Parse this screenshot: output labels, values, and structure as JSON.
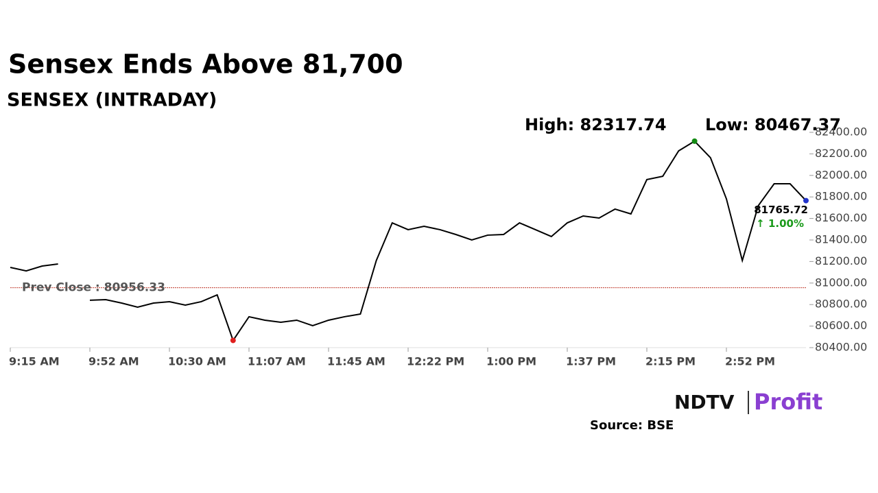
{
  "chart_data": {
    "type": "line",
    "title": "Sensex Ends Above 81,700",
    "subtitle": "SENSEX (INTRADAY)",
    "high_label": "High: 82317.74",
    "low_label": "Low: 80467.37",
    "prev_close": 80956.33,
    "prev_close_label": "Prev Close : 80956.33",
    "last_label": "81765.72",
    "change_label": "↑ 1.00%",
    "brand": [
      "NDTV",
      "Profit"
    ],
    "source": "Source: BSE",
    "categories": [
      "9:15 AM",
      null,
      null,
      null,
      null,
      "9:52 AM",
      null,
      null,
      null,
      null,
      "10:30 AM",
      null,
      null,
      null,
      null,
      "11:07 AM",
      null,
      null,
      null,
      null,
      "11:45 AM",
      null,
      null,
      null,
      null,
      "12:22 PM",
      null,
      null,
      null,
      null,
      "1:00 PM",
      null,
      null,
      null,
      null,
      "1:37 PM",
      null,
      null,
      null,
      null,
      "2:15 PM",
      null,
      null,
      null,
      null,
      "2:52 PM",
      null,
      null,
      null,
      null,
      null
    ],
    "series": [
      {
        "name": "SENSEX",
        "color": "#000000",
        "values": [
          81145,
          81113,
          81158,
          81177,
          null,
          80840,
          80846,
          80814,
          80776,
          80814,
          80827,
          80795,
          80827,
          80890,
          80467,
          80687,
          80655,
          80636,
          80655,
          80604,
          80655,
          80687,
          80712,
          81209,
          81559,
          81496,
          81527,
          81496,
          81451,
          81400,
          81445,
          81451,
          81559,
          81496,
          81432,
          81559,
          81623,
          81604,
          81687,
          81642,
          81961,
          81992,
          82228,
          82318,
          82164,
          81782,
          81209,
          81718,
          81922,
          81922,
          81765.72
        ]
      }
    ],
    "ylim": [
      80400,
      82400
    ],
    "yticks": [
      {
        "value": 80400,
        "label": "80400.00"
      },
      {
        "value": 80600,
        "label": "80600.00"
      },
      {
        "value": 80800,
        "label": "80800.00"
      },
      {
        "value": 81000,
        "label": "81000.00"
      },
      {
        "value": 81200,
        "label": "81200.00"
      },
      {
        "value": 81400,
        "label": "81400.00"
      },
      {
        "value": 81600,
        "label": "81600.00"
      },
      {
        "value": 81800,
        "label": "81800.00"
      },
      {
        "value": 82000,
        "label": "82000.00"
      },
      {
        "value": 82200,
        "label": "82200.00"
      },
      {
        "value": 82400,
        "label": "82400.00"
      }
    ],
    "high_color": "#138a13",
    "low_color": "#e0201e",
    "last_color": "#2233cc",
    "prev_close_color": "#c0392b",
    "change_color": "#1a9a1a"
  }
}
